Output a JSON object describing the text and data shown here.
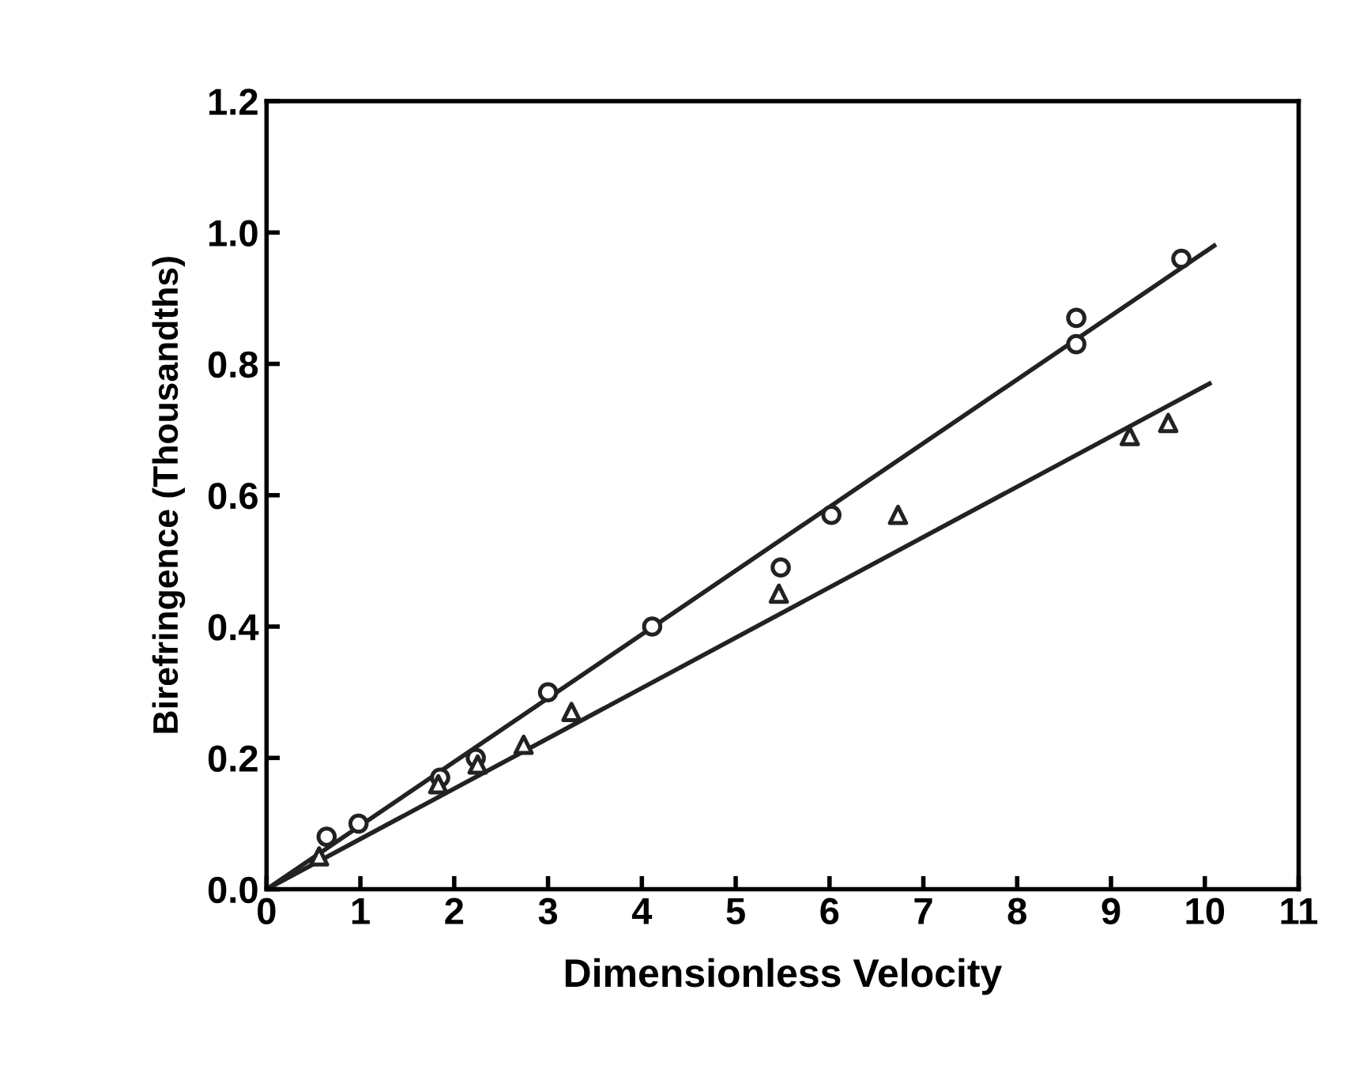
{
  "chart_data": {
    "type": "scatter",
    "xlabel": "Dimensionless Velocity",
    "ylabel": "Birefringence (Thousandths)",
    "xlim": [
      0,
      11
    ],
    "xticks": [
      0,
      1,
      2,
      3,
      4,
      5,
      6,
      7,
      8,
      9,
      10,
      11
    ],
    "ylim": [
      0.0,
      1.2
    ],
    "yticks": [
      {
        "value": 0,
        "label": "0.0"
      },
      0.2,
      0.4,
      0.6,
      0.8,
      {
        "value": 1,
        "label": "1.0"
      },
      1.2
    ],
    "grid": false,
    "series": [
      {
        "marker": "circle",
        "color": "#222222",
        "x": [
          0.64,
          0.98,
          1.85,
          2.23,
          3.0,
          4.11,
          5.48,
          6.02,
          8.63,
          8.63,
          9.75
        ],
        "values": [
          0.08,
          0.1,
          0.17,
          0.2,
          0.3,
          0.4,
          0.49,
          0.57,
          0.87,
          0.83,
          0.96
        ]
      },
      {
        "marker": "triangle",
        "color": "#222222",
        "x": [
          0.56,
          1.83,
          2.25,
          2.74,
          3.25,
          5.46,
          6.73,
          9.2,
          9.61
        ],
        "values": [
          0.05,
          0.16,
          0.19,
          0.22,
          0.27,
          0.45,
          0.57,
          0.69,
          0.71
        ]
      },
      {
        "type": "line",
        "marker": "none",
        "color": "#222222",
        "x": [
          0,
          10.1
        ],
        "values": [
          0,
          0.98
        ]
      },
      {
        "type": "line",
        "marker": "none",
        "color": "#222222",
        "x": [
          0,
          10.05
        ],
        "values": [
          0,
          0.77
        ]
      }
    ]
  }
}
